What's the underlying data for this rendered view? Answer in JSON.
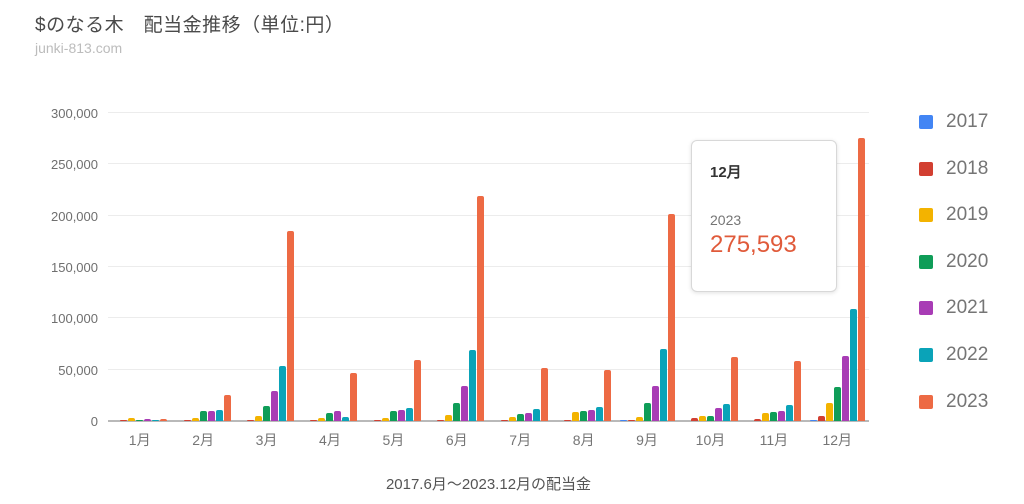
{
  "header": {
    "title": "$のなる木　配当金推移（単位:円）",
    "subtitle": "junki-813.com"
  },
  "chart_data": {
    "type": "bar",
    "title": "$のなる木　配当金推移（単位:円）",
    "caption": "2017.6月～2023.12月の配当金",
    "categories": [
      "1月",
      "2月",
      "3月",
      "4月",
      "5月",
      "6月",
      "7月",
      "8月",
      "9月",
      "10月",
      "11月",
      "12月"
    ],
    "series": [
      {
        "name": "2017",
        "color": "#4285f4",
        "values": [
          0,
          0,
          0,
          0,
          0,
          0,
          0,
          0,
          600,
          0,
          0,
          700
        ]
      },
      {
        "name": "2018",
        "color": "#d23f31",
        "values": [
          1200,
          700,
          1400,
          1200,
          1000,
          1000,
          700,
          1000,
          1200,
          2600,
          2300,
          4500
        ]
      },
      {
        "name": "2019",
        "color": "#f3b300",
        "values": [
          3000,
          2600,
          5000,
          3200,
          3200,
          5500,
          4200,
          8500,
          3900,
          4900,
          8100,
          17500
        ]
      },
      {
        "name": "2020",
        "color": "#0f9d58",
        "values": [
          300,
          10000,
          14500,
          8000,
          9500,
          18000,
          7100,
          9800,
          18000,
          4500,
          9100,
          33500
        ]
      },
      {
        "name": "2021",
        "color": "#a83cb5",
        "values": [
          1500,
          10000,
          29000,
          9500,
          10500,
          34000,
          8100,
          10400,
          34500,
          13000,
          9800,
          63000
        ]
      },
      {
        "name": "2022",
        "color": "#0aa3b8",
        "values": [
          400,
          11000,
          54000,
          3800,
          12800,
          69000,
          11400,
          13700,
          70000,
          17000,
          15600,
          109000
        ]
      },
      {
        "name": "2023",
        "color": "#ed6a44",
        "values": [
          2300,
          25000,
          185000,
          47000,
          59000,
          219000,
          52000,
          50000,
          202000,
          62000,
          58000,
          275593
        ]
      }
    ],
    "ylim": [
      0,
      300000
    ],
    "ytick_interval": 50000,
    "ytick_labels": [
      "0",
      "50,000",
      "100,000",
      "150,000",
      "200,000",
      "250,000",
      "300,000"
    ],
    "grid": true,
    "legend_position": "right"
  },
  "tooltip": {
    "month": "12月",
    "year": "2023",
    "value": "275,593"
  }
}
